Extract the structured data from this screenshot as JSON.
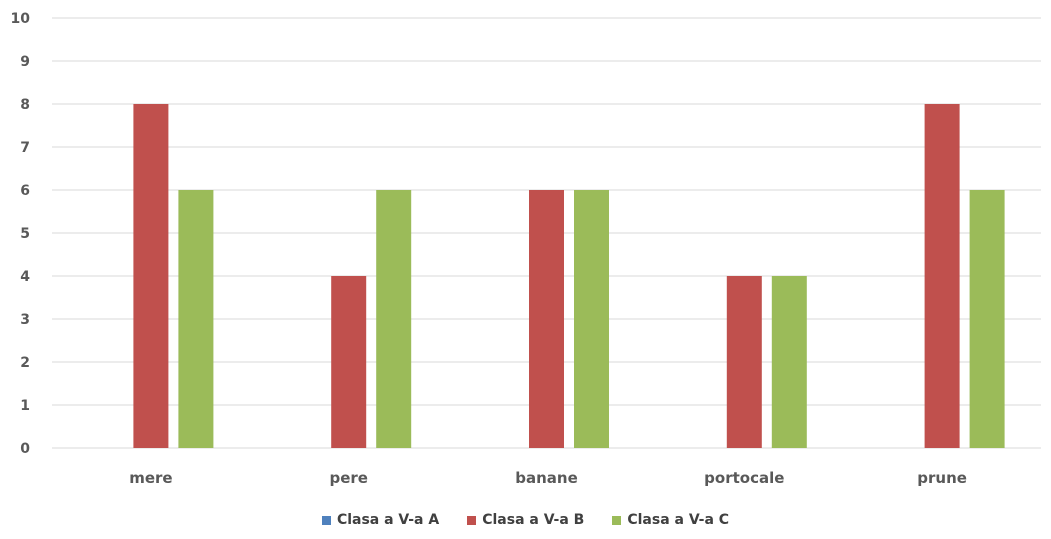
{
  "chart_data": {
    "type": "bar",
    "categories": [
      "mere",
      "pere",
      "banane",
      "portocale",
      "prune"
    ],
    "series": [
      {
        "name": "Clasa a V-a A",
        "values": [
          0,
          0,
          0,
          0,
          0
        ],
        "color": "#4F81BD"
      },
      {
        "name": "Clasa a V-a B",
        "values": [
          8,
          4,
          6,
          4,
          8
        ],
        "color": "#C0504D"
      },
      {
        "name": "Clasa a V-a C",
        "values": [
          6,
          6,
          6,
          4,
          6
        ],
        "color": "#9BBB59"
      }
    ],
    "ylim": [
      0,
      10
    ],
    "yticks": [
      0,
      1,
      2,
      3,
      4,
      5,
      6,
      7,
      8,
      9,
      10
    ],
    "grid": true,
    "legend_position": "bottom",
    "title": "",
    "xlabel": "",
    "ylabel": ""
  }
}
